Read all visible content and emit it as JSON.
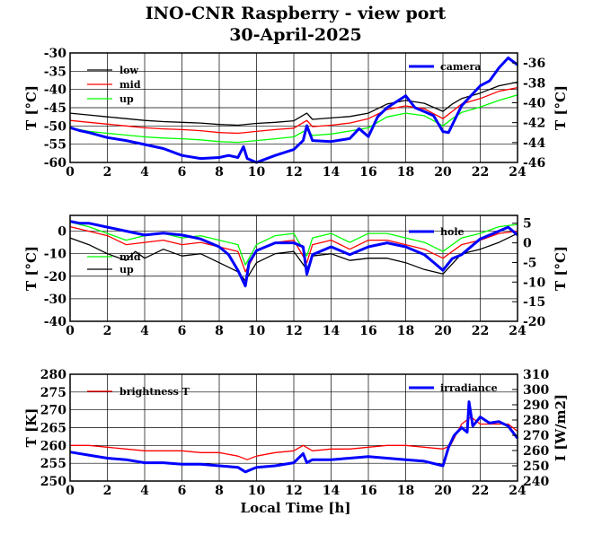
{
  "page": {
    "title": "INO-CNR Raspberry - view port",
    "subtitle": "30-April-2025"
  },
  "chart_data": [
    {
      "type": "line",
      "xlabel": "",
      "xlim": [
        0,
        24
      ],
      "xticks": [
        "0",
        "2",
        "4",
        "6",
        "8",
        "10",
        "12",
        "14",
        "16",
        "18",
        "20",
        "22",
        "24"
      ],
      "ylabel": "T [°C]",
      "ylim": [
        -60,
        -30
      ],
      "yticks": [
        "-30",
        "-35",
        "-40",
        "-45",
        "-50",
        "-55",
        "-60"
      ],
      "y2label": "T [°C]",
      "y2lim": [
        -46,
        -35
      ],
      "y2ticks": [
        "-36",
        "-38",
        "-40",
        "-42",
        "-44",
        "-46"
      ],
      "grid": true,
      "series": [
        {
          "name": "low",
          "color": "#000000",
          "axis": "left",
          "x": [
            0,
            1,
            2,
            3,
            4,
            5,
            6,
            7,
            8,
            9,
            10,
            11,
            12,
            12.7,
            13,
            14,
            15,
            16,
            17,
            18,
            19,
            20,
            20.5,
            21,
            22,
            23,
            24
          ],
          "y": [
            -46.5,
            -47,
            -47.5,
            -48,
            -48.5,
            -48.8,
            -49,
            -49.2,
            -49.6,
            -49.8,
            -49.3,
            -49,
            -48.6,
            -46.5,
            -48.2,
            -47.8,
            -47.4,
            -46.5,
            -44,
            -43,
            -43.8,
            -46,
            -44,
            -42.5,
            -41,
            -39,
            -38
          ]
        },
        {
          "name": "mid",
          "color": "#ff0000",
          "axis": "left",
          "x": [
            0,
            1,
            2,
            3,
            4,
            5,
            6,
            7,
            8,
            9,
            10,
            11,
            12,
            12.7,
            13,
            14,
            15,
            16,
            17,
            18,
            19,
            20,
            20.5,
            21,
            22,
            23,
            24
          ],
          "y": [
            -48.5,
            -49,
            -49.5,
            -50,
            -50.5,
            -50.8,
            -51,
            -51.3,
            -51.8,
            -52,
            -51.5,
            -51,
            -50.6,
            -48.5,
            -50.2,
            -49.8,
            -49.2,
            -48,
            -45.5,
            -44.5,
            -45.3,
            -48,
            -46,
            -44,
            -42.5,
            -40.5,
            -39.5
          ]
        },
        {
          "name": "up",
          "color": "#00ff00",
          "axis": "left",
          "x": [
            0,
            1,
            2,
            3,
            4,
            5,
            6,
            7,
            8,
            9,
            10,
            11,
            12,
            12.7,
            13,
            14,
            15,
            16,
            17,
            18,
            19,
            20,
            20.5,
            21,
            22,
            23,
            24
          ],
          "y": [
            -50.5,
            -51.5,
            -52,
            -52.5,
            -53,
            -53.3,
            -53.5,
            -53.8,
            -54.3,
            -54.5,
            -54,
            -53.5,
            -53,
            -51,
            -52.6,
            -52.2,
            -51.4,
            -50.5,
            -47.5,
            -46.5,
            -47.2,
            -50,
            -48,
            -46.3,
            -44.8,
            -43,
            -41.5
          ]
        },
        {
          "name": "camera",
          "color": "#0000ff",
          "axis": "right",
          "x": [
            0,
            0.5,
            1,
            2,
            3,
            4,
            5,
            6,
            7,
            8,
            8.5,
            9,
            9.3,
            9.5,
            10,
            11,
            12,
            12.5,
            12.7,
            13,
            14,
            15,
            15.5,
            16,
            16.5,
            17,
            18,
            18.5,
            19,
            19.5,
            20,
            20.3,
            21,
            22,
            22.5,
            23,
            23.5,
            24
          ],
          "y": [
            -42.5,
            -42.8,
            -43,
            -43.5,
            -43.8,
            -44.2,
            -44.6,
            -45.3,
            -45.6,
            -45.5,
            -45.3,
            -45.5,
            -44.4,
            -45.6,
            -46,
            -45.3,
            -44.7,
            -43.8,
            -42.3,
            -43.8,
            -43.9,
            -43.6,
            -42.6,
            -43.4,
            -41.4,
            -40.5,
            -39.3,
            -40.5,
            -40.9,
            -41.3,
            -42.9,
            -43,
            -40.3,
            -38.3,
            -37.8,
            -36.5,
            -35.5,
            -36.2
          ]
        }
      ]
    },
    {
      "type": "line",
      "xlabel": "",
      "xlim": [
        0,
        24
      ],
      "xticks": [
        "0",
        "2",
        "4",
        "6",
        "8",
        "10",
        "12",
        "14",
        "16",
        "18",
        "20",
        "22",
        "24"
      ],
      "ylabel": "T [°C]",
      "ylim": [
        -40,
        7
      ],
      "yticks": [
        "0",
        "-10",
        "-20",
        "-30",
        "-40"
      ],
      "y2label": "T [°C]",
      "y2lim": [
        -20,
        7
      ],
      "y2ticks": [
        "5",
        "0",
        "-5",
        "-10",
        "-15",
        "-20"
      ],
      "grid": true,
      "series": [
        {
          "name": "low",
          "color": "#ff0000",
          "axis": "left",
          "x": [
            0,
            1,
            2,
            3,
            4,
            5,
            6,
            7,
            8,
            9,
            9.4,
            10,
            11,
            12,
            12.7,
            13,
            14,
            15,
            16,
            17,
            18,
            19,
            20,
            21,
            22,
            23,
            24
          ],
          "y": [
            2,
            0,
            -2,
            -6,
            -5,
            -4,
            -6,
            -5,
            -7,
            -9,
            -18,
            -9,
            -5,
            -4,
            -14,
            -6,
            -4,
            -8,
            -4,
            -4,
            -6,
            -8,
            -12,
            -6,
            -4,
            -1,
            0
          ]
        },
        {
          "name": "mid",
          "color": "#00ff00",
          "axis": "left",
          "x": [
            0,
            1,
            2,
            3,
            4,
            5,
            6,
            7,
            8,
            9,
            9.4,
            10,
            11,
            12,
            12.7,
            13,
            14,
            15,
            16,
            17,
            18,
            19,
            20,
            21,
            22,
            23,
            24
          ],
          "y": [
            4,
            2,
            -1,
            -4,
            -2,
            -1,
            -3,
            -2,
            -4,
            -6,
            -15,
            -6,
            -2,
            -1,
            -11,
            -3,
            -1,
            -5,
            -1,
            -1,
            -3,
            -5,
            -9,
            -3,
            -1,
            2,
            3
          ]
        },
        {
          "name": "up",
          "color": "#000000",
          "axis": "left",
          "x": [
            0,
            1,
            2,
            3,
            3.5,
            4,
            5,
            6,
            7,
            8,
            9,
            9.4,
            10,
            11,
            12,
            12.7,
            13,
            14,
            15,
            16,
            17,
            18,
            19,
            20,
            21,
            22,
            23,
            24
          ],
          "y": [
            -3,
            -6,
            -10,
            -13,
            -9,
            -12,
            -8,
            -11,
            -10,
            -14,
            -18,
            -22,
            -14,
            -10,
            -9,
            -17,
            -11,
            -10,
            -13,
            -12,
            -12,
            -14,
            -17,
            -19,
            -10,
            -8,
            -5,
            -1
          ]
        },
        {
          "name": "hole",
          "color": "#0000ff",
          "axis": "right",
          "x": [
            0,
            0.5,
            1,
            2,
            3,
            4,
            5,
            6,
            7,
            8,
            8.5,
            9,
            9.4,
            9.6,
            10,
            11,
            12,
            12.5,
            12.7,
            13,
            14,
            15,
            16,
            17,
            18,
            19,
            19.5,
            20,
            20.5,
            21,
            22,
            23,
            23.5,
            24
          ],
          "y": [
            5.5,
            5,
            5,
            4,
            3,
            2,
            2.5,
            2,
            1,
            -1,
            -3,
            -7,
            -11,
            -5,
            -2,
            0,
            0,
            -1,
            -8,
            -3,
            -1,
            -3,
            -1,
            0,
            -1,
            -3,
            -5,
            -7,
            -4,
            -3,
            1,
            3,
            4,
            2
          ]
        }
      ]
    },
    {
      "type": "line",
      "xlabel": "Local Time [h]",
      "xlim": [
        0,
        24
      ],
      "xticks": [
        "0",
        "2",
        "4",
        "6",
        "8",
        "10",
        "12",
        "14",
        "16",
        "18",
        "20",
        "22",
        "24"
      ],
      "ylabel": "T [K]",
      "ylim": [
        250,
        280
      ],
      "yticks": [
        "280",
        "275",
        "270",
        "265",
        "260",
        "255",
        "250"
      ],
      "y2label": "I [W/m2]",
      "y2lim": [
        240,
        310
      ],
      "y2ticks": [
        "310",
        "300",
        "290",
        "280",
        "270",
        "260",
        "250",
        "240"
      ],
      "grid": true,
      "series": [
        {
          "name": "brightness T",
          "color": "#ff0000",
          "axis": "left",
          "x": [
            0,
            1,
            2,
            3,
            4,
            5,
            6,
            7,
            8,
            9,
            9.5,
            10,
            11,
            12,
            12.5,
            13,
            14,
            15,
            16,
            17,
            18,
            19,
            20,
            20.4,
            21,
            21.5,
            22,
            22.5,
            23,
            23.5,
            24
          ],
          "y": [
            260,
            260,
            259.5,
            259,
            258.5,
            258.5,
            258.5,
            258,
            258,
            257,
            256,
            257,
            258,
            258.5,
            260,
            258.5,
            259,
            259,
            259.5,
            260,
            260,
            259.5,
            259,
            260,
            266,
            268,
            266,
            266,
            266,
            266,
            264
          ]
        },
        {
          "name": "irradiance",
          "color": "#0000ff",
          "axis": "right",
          "x": [
            0,
            1,
            2,
            3,
            4,
            5,
            6,
            7,
            8,
            9,
            9.4,
            9.8,
            10,
            11,
            12,
            12.5,
            12.7,
            13,
            14,
            15,
            16,
            17,
            18,
            19,
            20,
            20.3,
            20.6,
            21,
            21.3,
            21.4,
            21.6,
            22,
            22.5,
            23,
            23.5,
            24
          ],
          "y": [
            259,
            257,
            255,
            254,
            252,
            252,
            251,
            251,
            250,
            249,
            246,
            248,
            249,
            250,
            252,
            258,
            252,
            254,
            254,
            255,
            256,
            255,
            254,
            253,
            250,
            262,
            270,
            275,
            272,
            292,
            276,
            282,
            278,
            279,
            276,
            268
          ]
        }
      ]
    }
  ]
}
